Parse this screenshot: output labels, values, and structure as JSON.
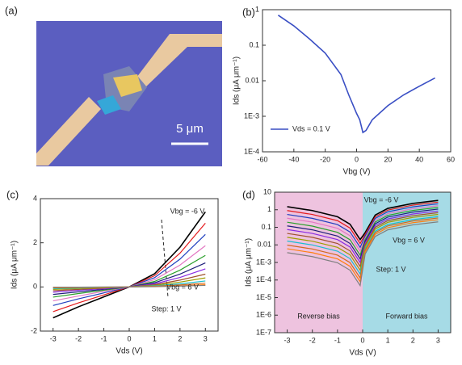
{
  "image_panel": {
    "label": "(a)",
    "scale_bar": "5 μm"
  },
  "chart_data": [
    {
      "type": "line",
      "panel_label": "(b)",
      "xlabel": "Vbg (V)",
      "ylabel": "Ids (μA μm⁻¹)",
      "log_y": true,
      "legend": "lower left",
      "xlim": [
        -60,
        60
      ],
      "xticks": [
        -60,
        -40,
        -20,
        0,
        20,
        40,
        60
      ],
      "ylim": [
        0.0001,
        1
      ],
      "yticks": [
        {
          "value": 0.0001,
          "label": "1E-4"
        },
        {
          "value": 0.001,
          "label": "1E-3"
        },
        0.01,
        0.1,
        1
      ],
      "x": [
        -50,
        -40,
        -30,
        -20,
        -10,
        -5,
        0,
        2,
        4,
        6,
        10,
        20,
        30,
        40,
        50
      ],
      "series": [
        {
          "name": "Vds = 0.1 V",
          "color": "#3a4fc4",
          "values": [
            0.7,
            0.35,
            0.15,
            0.06,
            0.015,
            0.004,
            0.0012,
            0.0008,
            0.00035,
            0.0004,
            0.0008,
            0.002,
            0.004,
            0.007,
            0.012
          ]
        }
      ]
    },
    {
      "type": "line",
      "panel_label": "(c)",
      "xlabel": "Vds (V)",
      "ylabel": "Ids (μA μm⁻¹)",
      "log_y": false,
      "annotations": [
        "Vbg = -6 V",
        "Vbg = 6 V",
        "Step: 1 V"
      ],
      "xlim": [
        -3.5,
        3.5
      ],
      "xticks": [
        -3,
        -2,
        -1,
        0,
        1,
        2,
        3
      ],
      "ylim": [
        -2,
        4
      ],
      "yticks": [
        -2,
        0,
        2,
        4
      ],
      "x": [
        -3,
        -2,
        -1,
        0,
        1,
        2,
        3
      ],
      "series": [
        {
          "color": "#000000",
          "values": [
            -1.4,
            -0.9,
            -0.45,
            0,
            0.6,
            1.8,
            3.4
          ]
        },
        {
          "color": "#e41a1c",
          "values": [
            -1.12,
            -0.72,
            -0.36,
            0,
            0.51,
            1.53,
            2.89
          ]
        },
        {
          "color": "#1f3fbf",
          "values": [
            -0.84,
            -0.54,
            -0.27,
            0,
            0.42,
            1.26,
            2.38
          ]
        },
        {
          "color": "#e377c2",
          "values": [
            -0.63,
            -0.41,
            -0.2,
            0,
            0.33,
            0.99,
            1.87
          ]
        },
        {
          "color": "#2ca02c",
          "values": [
            -0.46,
            -0.3,
            -0.15,
            0,
            0.25,
            0.76,
            1.43
          ]
        },
        {
          "color": "#1f1f7a",
          "values": [
            -0.34,
            -0.22,
            -0.11,
            0,
            0.19,
            0.58,
            1.09
          ]
        },
        {
          "color": "#8a2be2",
          "values": [
            -0.24,
            -0.15,
            -0.08,
            0,
            0.14,
            0.43,
            0.82
          ]
        },
        {
          "color": "#a0522d",
          "values": [
            -0.17,
            -0.11,
            -0.05,
            0,
            0.1,
            0.31,
            0.58
          ]
        },
        {
          "color": "#9e9e00",
          "values": [
            -0.11,
            -0.07,
            -0.04,
            0,
            0.07,
            0.22,
            0.41
          ]
        },
        {
          "color": "#17becf",
          "values": [
            -0.07,
            -0.05,
            -0.02,
            0,
            0.05,
            0.14,
            0.27
          ]
        },
        {
          "color": "#d2691e",
          "values": [
            -0.04,
            -0.03,
            -0.01,
            0,
            0.03,
            0.09,
            0.17
          ]
        },
        {
          "color": "#ff7f0e",
          "values": [
            -0.03,
            -0.02,
            -0.01,
            0,
            0.02,
            0.05,
            0.1
          ]
        },
        {
          "color": "#7f7f7f",
          "values": [
            -0.01,
            -0.01,
            0,
            0,
            0.01,
            0.04,
            0.07
          ]
        }
      ]
    },
    {
      "type": "line",
      "panel_label": "(d)",
      "xlabel": "Vds (V)",
      "ylabel": "Ids (μA μm⁻¹)",
      "log_y": true,
      "annotations": [
        "Vbg = -6 V",
        "Vbg = 6 V",
        "Step: 1 V"
      ],
      "regions": [
        {
          "label": "Reverse bias",
          "from": -3.5,
          "to": 0,
          "color": "#eec3df"
        },
        {
          "label": "Forward bias",
          "from": 0,
          "to": 3.5,
          "color": "#a6dbe6"
        }
      ],
      "xlim": [
        -3.5,
        3.5
      ],
      "xticks": [
        -3,
        -2,
        -1,
        0,
        1,
        2,
        3
      ],
      "ylim": [
        1e-07,
        10
      ],
      "yticks": [
        {
          "value": 1e-07,
          "label": "1E-7"
        },
        {
          "value": 1e-06,
          "label": "1E-6"
        },
        {
          "value": 1e-05,
          "label": "1E-5"
        },
        {
          "value": 0.0001,
          "label": "1E-4"
        },
        {
          "value": 0.001,
          "label": "1E-3"
        },
        0.01,
        0.1,
        1,
        10
      ],
      "x": [
        -3,
        -2,
        -1,
        -0.5,
        -0.1,
        0.1,
        0.5,
        1,
        2,
        3
      ],
      "series": [
        {
          "color": "#000000",
          "values": [
            1.5,
            0.9,
            0.4,
            0.15,
            0.02,
            0.05,
            0.5,
            1.2,
            2.3,
            3.4
          ]
        },
        {
          "color": "#e41a1c",
          "values": [
            0.9,
            0.54,
            0.24,
            0.09,
            0.012,
            0.04,
            0.4,
            0.96,
            1.84,
            2.72
          ]
        },
        {
          "color": "#1f3fbf",
          "values": [
            0.54,
            0.324,
            0.144,
            0.054,
            0.0072,
            0.032,
            0.32,
            0.768,
            1.472,
            2.176
          ]
        },
        {
          "color": "#e377c2",
          "values": [
            0.33,
            0.198,
            0.088,
            0.033,
            0.0044,
            0.025,
            0.25,
            0.6,
            1.15,
            1.7
          ]
        },
        {
          "color": "#2ca02c",
          "values": [
            0.195,
            0.117,
            0.052,
            0.0195,
            0.0026,
            0.02,
            0.2,
            0.48,
            0.92,
            1.36
          ]
        },
        {
          "color": "#1f1f7a",
          "values": [
            0.12,
            0.072,
            0.032,
            0.012,
            0.0016,
            0.016,
            0.16,
            0.384,
            0.736,
            1.088
          ]
        },
        {
          "color": "#8a2be2",
          "values": [
            0.075,
            0.045,
            0.02,
            0.0075,
            0.001,
            0.0125,
            0.125,
            0.3,
            0.575,
            0.85
          ]
        },
        {
          "color": "#a0522d",
          "values": [
            0.045,
            0.027,
            0.012,
            0.0045,
            0.0006,
            0.01,
            0.1,
            0.24,
            0.46,
            0.68
          ]
        },
        {
          "color": "#9e9e00",
          "values": [
            0.027,
            0.0162,
            0.0072,
            0.0027,
            0.00036,
            0.008,
            0.08,
            0.192,
            0.368,
            0.544
          ]
        },
        {
          "color": "#17becf",
          "values": [
            0.0165,
            0.0099,
            0.0044,
            0.00165,
            0.00022,
            0.006,
            0.06,
            0.144,
            0.276,
            0.408
          ]
        },
        {
          "color": "#d2691e",
          "values": [
            0.00975,
            0.00585,
            0.0026,
            0.000975,
            0.00013,
            0.005,
            0.05,
            0.12,
            0.23,
            0.34
          ]
        },
        {
          "color": "#ff7f0e",
          "values": [
            0.006,
            0.0036,
            0.0016,
            0.0006,
            8e-05,
            0.004,
            0.04,
            0.096,
            0.184,
            0.272
          ]
        },
        {
          "color": "#7f7f7f",
          "values": [
            0.0036,
            0.00216,
            0.00096,
            0.00036,
            4.8e-05,
            0.003,
            0.03,
            0.072,
            0.138,
            0.204
          ]
        }
      ]
    }
  ]
}
